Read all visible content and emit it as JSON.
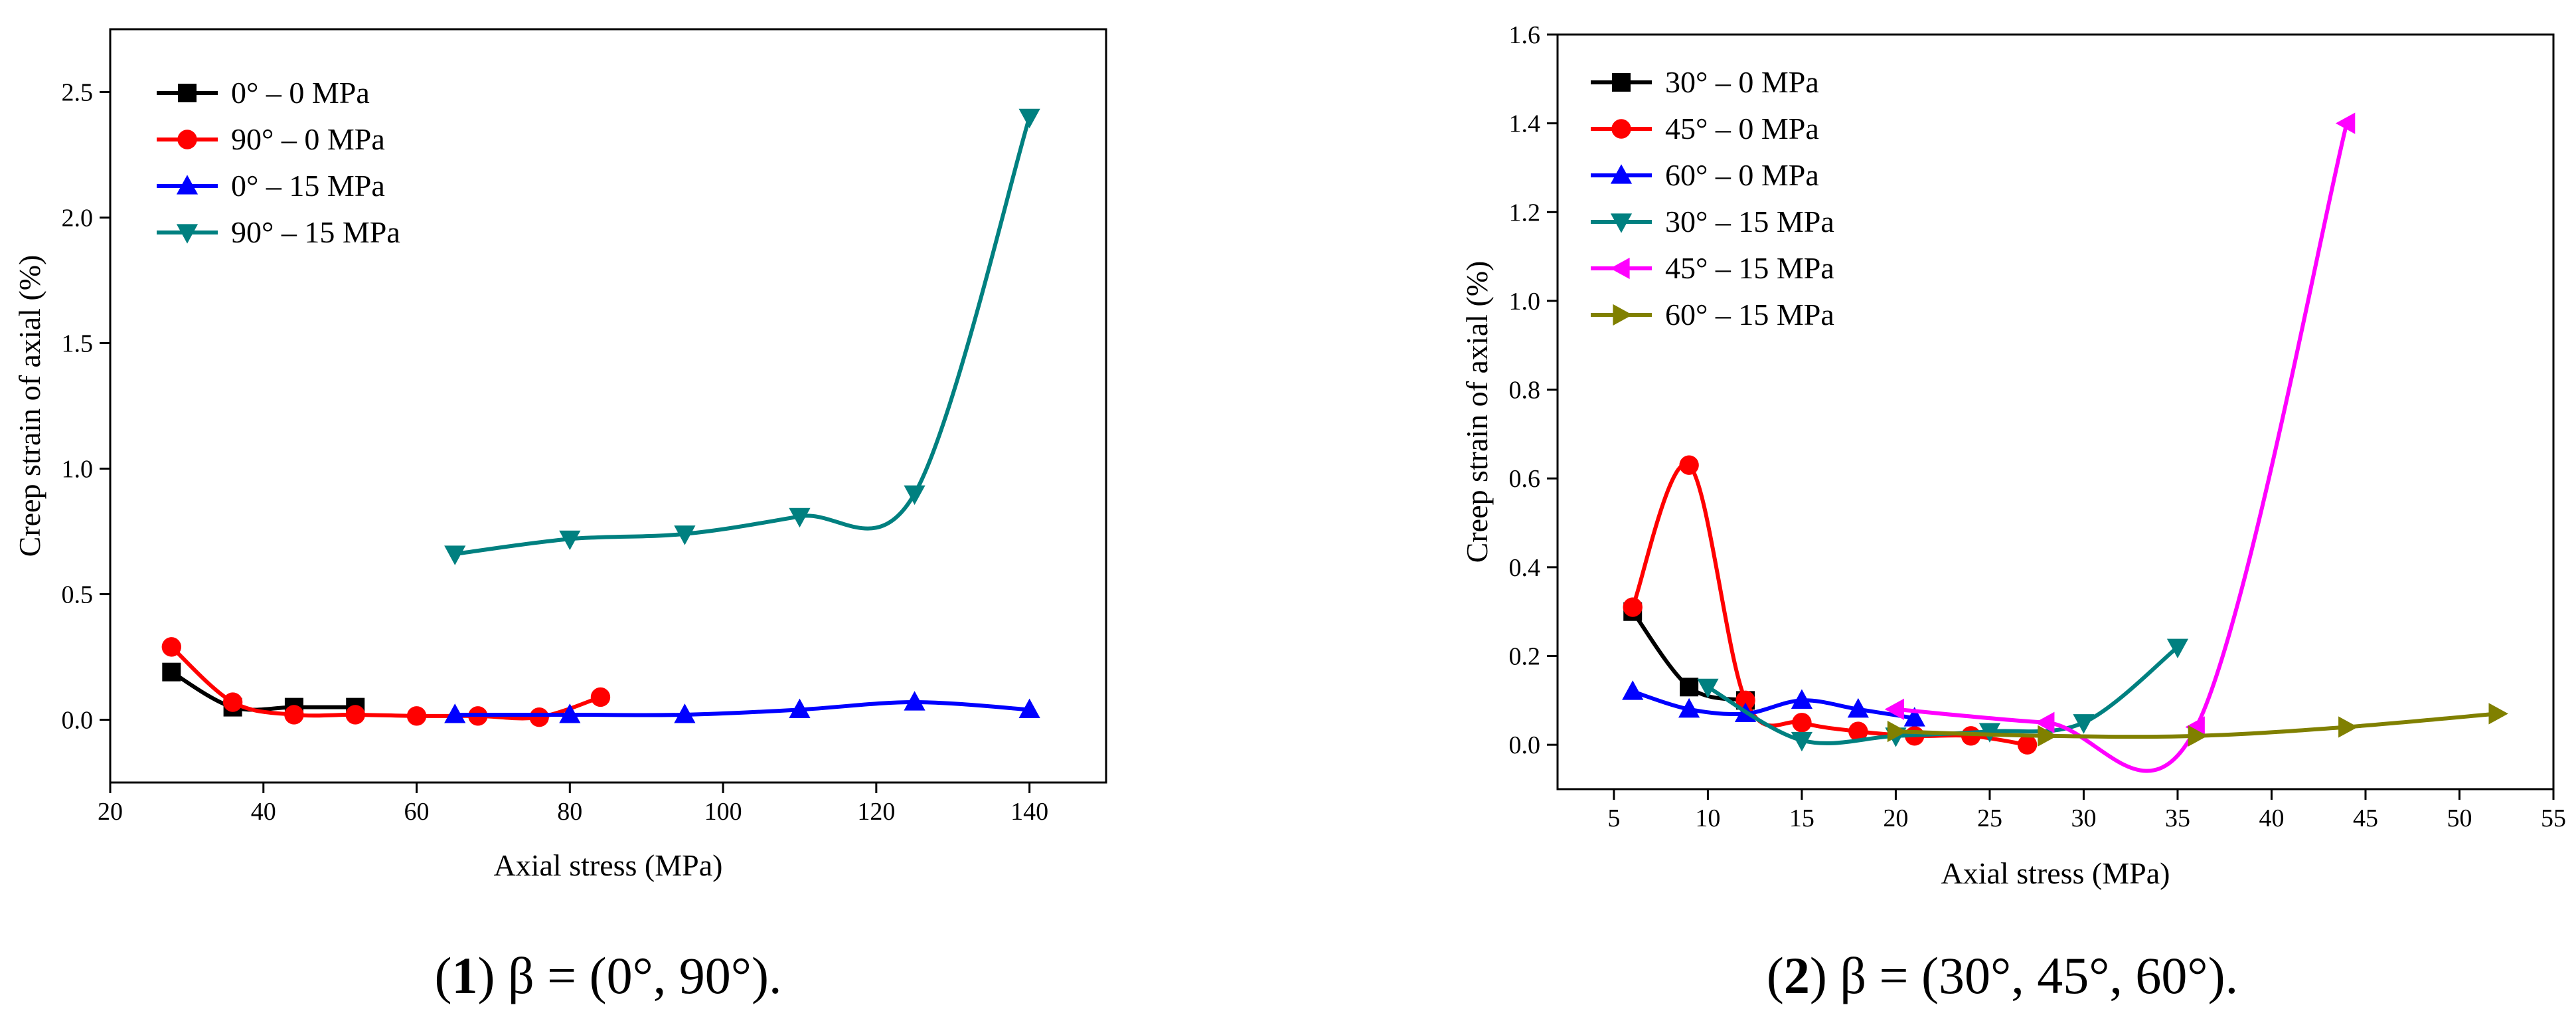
{
  "chart_data": [
    {
      "type": "scatter",
      "caption": {
        "number": "1",
        "text": " β = (0°, 90°)."
      },
      "xlabel": "Axial stress (MPa)",
      "ylabel": "Creep strain of axial (%)",
      "xlim": [
        20,
        150
      ],
      "ylim": [
        -0.25,
        2.75
      ],
      "xticks": [
        20,
        40,
        60,
        80,
        100,
        120,
        140
      ],
      "yticks": [
        0.0,
        0.5,
        1.0,
        1.5,
        2.0,
        2.5
      ],
      "ytick_labels": [
        "0.0",
        "0.5",
        "1.0",
        "1.5",
        "2.0",
        "2.5"
      ],
      "legend_position": "top-left",
      "series": [
        {
          "name": "0° – 0 MPa",
          "color": "#000000",
          "marker": "square",
          "x": [
            28,
            36,
            44,
            52
          ],
          "y": [
            0.19,
            0.05,
            0.05,
            0.05
          ]
        },
        {
          "name": "90° – 0 MPa",
          "color": "#ff0000",
          "marker": "circle",
          "x": [
            28,
            36,
            44,
            52,
            60,
            68,
            76,
            84
          ],
          "y": [
            0.29,
            0.07,
            0.02,
            0.02,
            0.015,
            0.015,
            0.01,
            0.09
          ]
        },
        {
          "name": "0° – 15 MPa",
          "color": "#0000ff",
          "marker": "triangle-up",
          "x": [
            65,
            80,
            95,
            110,
            125,
            140
          ],
          "y": [
            0.02,
            0.02,
            0.02,
            0.04,
            0.07,
            0.04
          ]
        },
        {
          "name": "90° – 15 MPa",
          "color": "#008080",
          "marker": "triangle-down",
          "x": [
            65,
            80,
            95,
            110,
            125,
            140
          ],
          "y": [
            0.66,
            0.72,
            0.74,
            0.81,
            0.9,
            2.4
          ]
        }
      ]
    },
    {
      "type": "scatter",
      "caption": {
        "number": "2",
        "text": " β = (30°, 45°, 60°)."
      },
      "xlabel": "Axial stress (MPa)",
      "ylabel": "Creep strain of axial (%)",
      "xlim": [
        2,
        55
      ],
      "ylim": [
        -0.1,
        1.6
      ],
      "xticks": [
        5,
        10,
        15,
        20,
        25,
        30,
        35,
        40,
        45,
        50,
        55
      ],
      "yticks": [
        0.0,
        0.2,
        0.4,
        0.6,
        0.8,
        1.0,
        1.2,
        1.4,
        1.6
      ],
      "ytick_labels": [
        "0.0",
        "0.2",
        "0.4",
        "0.6",
        "0.8",
        "1.0",
        "1.2",
        "1.4",
        "1.6"
      ],
      "legend_position": "top-left",
      "series": [
        {
          "name": "30° – 0 MPa",
          "color": "#000000",
          "marker": "square",
          "x": [
            6,
            9,
            12
          ],
          "y": [
            0.3,
            0.13,
            0.1
          ]
        },
        {
          "name": "45° – 0 MPa",
          "color": "#ff0000",
          "marker": "circle",
          "x": [
            6,
            9,
            12,
            15,
            18,
            21,
            24,
            27
          ],
          "y": [
            0.31,
            0.63,
            0.1,
            0.05,
            0.03,
            0.02,
            0.02,
            0.0
          ]
        },
        {
          "name": "60° – 0 MPa",
          "color": "#0000ff",
          "marker": "triangle-up",
          "x": [
            6,
            9,
            12,
            15,
            18,
            21
          ],
          "y": [
            0.12,
            0.08,
            0.07,
            0.1,
            0.08,
            0.06
          ]
        },
        {
          "name": "30° – 15 MPa",
          "color": "#008080",
          "marker": "triangle-down",
          "x": [
            10,
            15,
            20,
            25,
            30,
            35
          ],
          "y": [
            0.13,
            0.01,
            0.02,
            0.03,
            0.05,
            0.22
          ]
        },
        {
          "name": "45° – 15 MPa",
          "color": "#ff00ff",
          "marker": "triangle-left",
          "x": [
            20,
            28,
            36,
            44
          ],
          "y": [
            0.08,
            0.05,
            0.04,
            1.4
          ]
        },
        {
          "name": "60° – 15 MPa",
          "color": "#808000",
          "marker": "triangle-right",
          "x": [
            20,
            28,
            36,
            44,
            52
          ],
          "y": [
            0.03,
            0.02,
            0.02,
            0.04,
            0.07
          ]
        }
      ]
    }
  ]
}
